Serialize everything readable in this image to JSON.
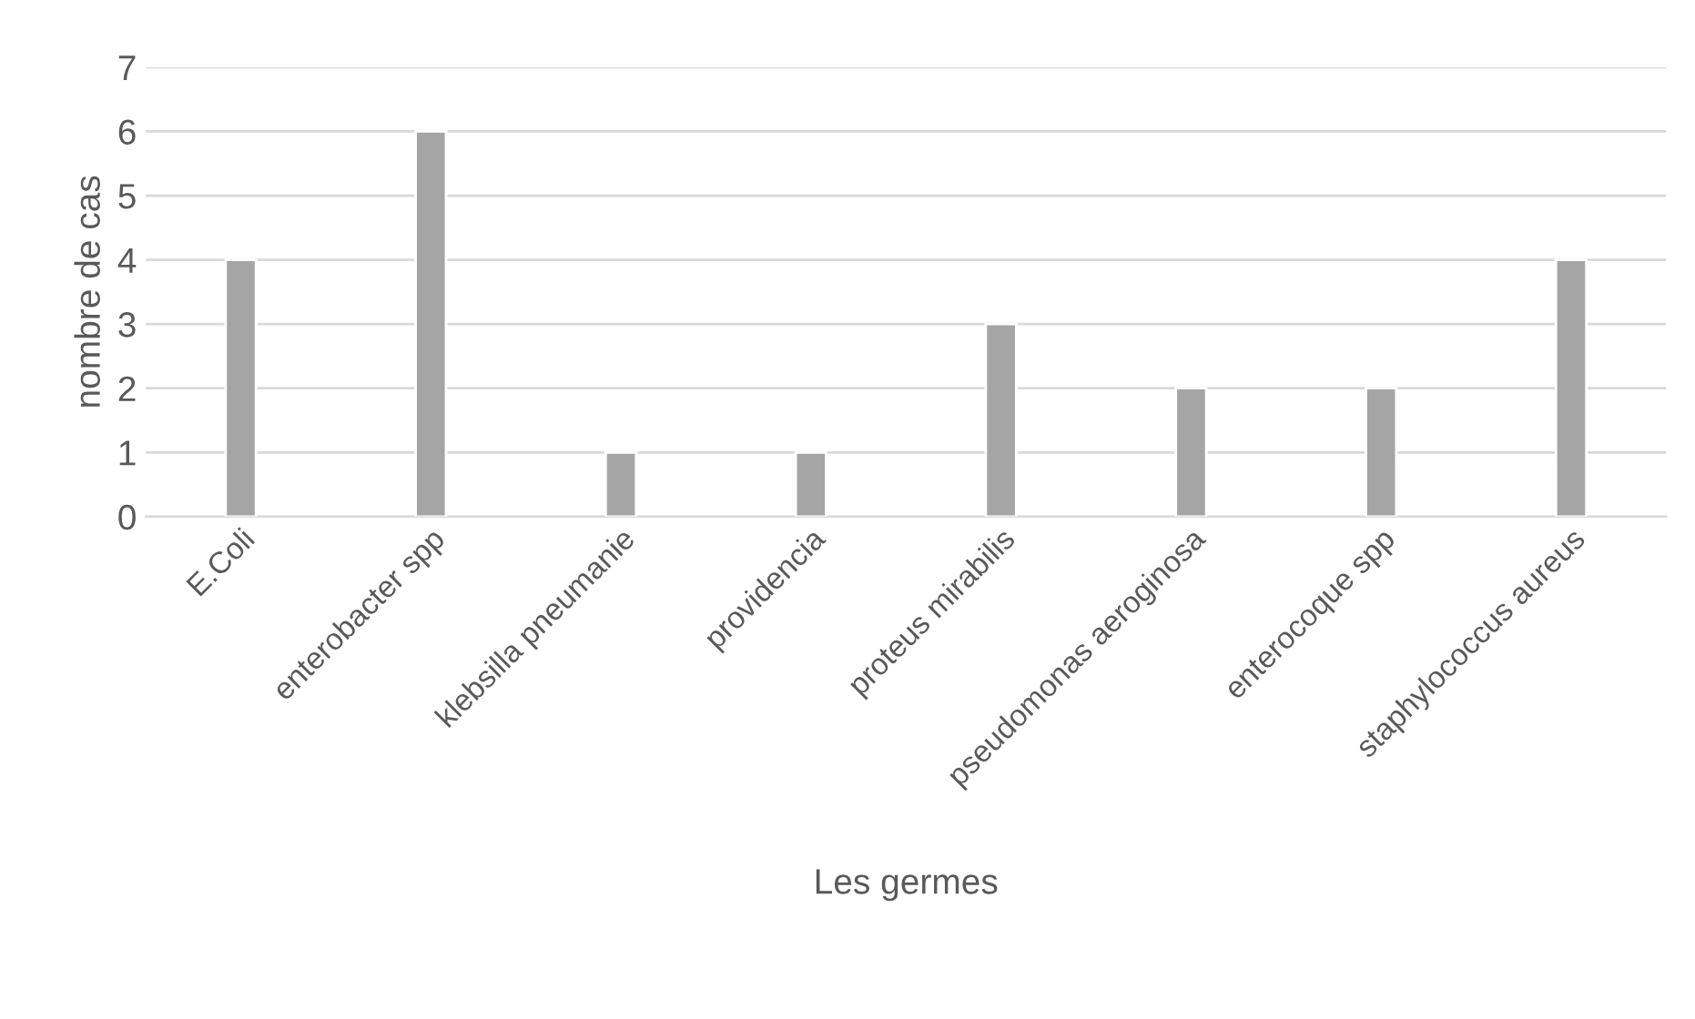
{
  "chart_data": {
    "type": "bar",
    "categories": [
      "E.Coli",
      "enterobacter spp",
      "klebsilla pneumanie",
      "providencia",
      "proteus mirabilis",
      "pseudomonas aeroginosa",
      "enterocoque spp",
      "staphylococcus aureus"
    ],
    "values": [
      4,
      6,
      1,
      1,
      3,
      2,
      2,
      4
    ],
    "color": "#a5a5a5",
    "xlabel": "Les germes",
    "ylabel": "nombre de cas",
    "ylim": [
      0,
      7
    ],
    "yticks": [
      0,
      1,
      2,
      3,
      4,
      5,
      6,
      7
    ],
    "grid": "y"
  }
}
